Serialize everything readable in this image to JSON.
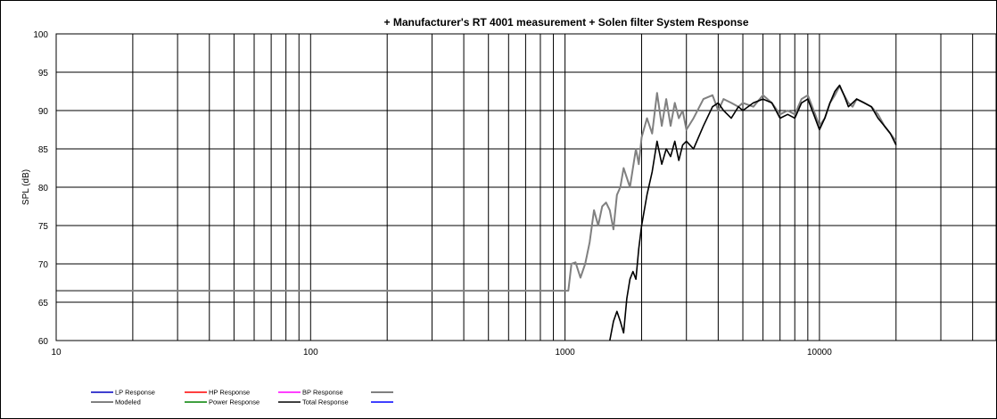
{
  "chart_data": {
    "type": "line",
    "title": "+ Manufacturer's RT 4001 measurement + Solen filter     System Response",
    "xlabel": "",
    "ylabel": "SPL (dB)",
    "x_scale": "log",
    "xlim": [
      10,
      40000
    ],
    "ylim": [
      60,
      100
    ],
    "grid": true,
    "legend_position": "bottom",
    "x_tick_labels": [
      "10",
      "100",
      "1000",
      "10000"
    ],
    "y_tick_labels": [
      "60",
      "65",
      "70",
      "75",
      "80",
      "85",
      "90",
      "95",
      "100"
    ],
    "colors": {
      "modeled": "#808080",
      "total": "#000000",
      "lp": "#0000c0",
      "hp": "#ff0000",
      "bp": "#ff00ff",
      "power": "#008000",
      "blank1": "#808080",
      "blank2": "#0000ff"
    },
    "legend": [
      {
        "key": "lp",
        "label": "LP Response"
      },
      {
        "key": "hp",
        "label": "HP Response"
      },
      {
        "key": "bp",
        "label": "BP Response"
      },
      {
        "key": "blank1",
        "label": ""
      },
      {
        "key": "modeled",
        "label": "Modeled"
      },
      {
        "key": "power",
        "label": "Power Response"
      },
      {
        "key": "total",
        "label": "Total Response"
      },
      {
        "key": "blank2",
        "label": ""
      }
    ],
    "series": [
      {
        "name": "Modeled",
        "key": "modeled",
        "x": [
          10,
          20,
          50,
          100,
          300,
          600,
          1000,
          1030,
          1060,
          1100,
          1150,
          1200,
          1250,
          1300,
          1350,
          1400,
          1450,
          1500,
          1550,
          1600,
          1650,
          1700,
          1800,
          1900,
          1950,
          2000,
          2100,
          2200,
          2300,
          2400,
          2500,
          2600,
          2700,
          2800,
          2900,
          3000,
          3200,
          3500,
          3800,
          4000,
          4200,
          4500,
          4800,
          5000,
          5500,
          6000,
          6500,
          7000,
          7500,
          8000,
          8500,
          9000,
          9500,
          10000,
          10500,
          11000,
          11500,
          12000,
          12500,
          13000,
          13500,
          14000,
          15000,
          16000,
          17000,
          18000,
          19000,
          20000
        ],
        "y": [
          66.5,
          66.5,
          66.5,
          66.5,
          66.5,
          66.5,
          66.5,
          66.5,
          70.0,
          70.2,
          68.2,
          70.0,
          72.8,
          77.0,
          75.0,
          77.5,
          78.0,
          77.0,
          74.5,
          79.0,
          80.0,
          82.5,
          80.0,
          85.0,
          83.0,
          86.5,
          89.0,
          87.0,
          92.3,
          88.0,
          91.5,
          88.0,
          91.0,
          89.0,
          90.0,
          87.5,
          89.0,
          91.5,
          92.0,
          90.0,
          91.5,
          91.0,
          90.5,
          91.0,
          90.5,
          92.0,
          91.0,
          89.5,
          90.0,
          89.5,
          91.5,
          92.0,
          90.0,
          88.0,
          89.0,
          91.0,
          92.0,
          93.2,
          92.0,
          91.0,
          90.5,
          91.5,
          91.0,
          90.5,
          89.5,
          88.0,
          87.0,
          86.0
        ]
      },
      {
        "name": "Total Response",
        "key": "total",
        "x": [
          1500,
          1550,
          1600,
          1650,
          1700,
          1750,
          1800,
          1850,
          1900,
          1950,
          2000,
          2100,
          2200,
          2300,
          2400,
          2500,
          2600,
          2700,
          2800,
          2900,
          3000,
          3200,
          3500,
          3800,
          4000,
          4200,
          4500,
          4800,
          5000,
          5500,
          6000,
          6500,
          7000,
          7500,
          8000,
          8500,
          9000,
          9500,
          10000,
          10500,
          11000,
          11500,
          12000,
          12500,
          13000,
          13500,
          14000,
          15000,
          16000,
          17000,
          18000,
          19000,
          20000
        ],
        "y": [
          60.0,
          62.5,
          63.8,
          62.5,
          61.0,
          65.5,
          68.0,
          69.0,
          68.0,
          72.0,
          75.0,
          79.0,
          82.0,
          86.0,
          83.0,
          85.0,
          84.0,
          86.0,
          83.5,
          85.5,
          86.0,
          85.0,
          88.0,
          90.5,
          91.0,
          90.0,
          89.0,
          90.5,
          90.0,
          91.0,
          91.5,
          91.0,
          89.0,
          89.5,
          89.0,
          91.0,
          91.5,
          89.5,
          87.5,
          89.0,
          91.0,
          92.5,
          93.3,
          92.0,
          90.5,
          91.0,
          91.5,
          91.0,
          90.5,
          89.0,
          88.0,
          87.0,
          85.5
        ]
      }
    ]
  }
}
